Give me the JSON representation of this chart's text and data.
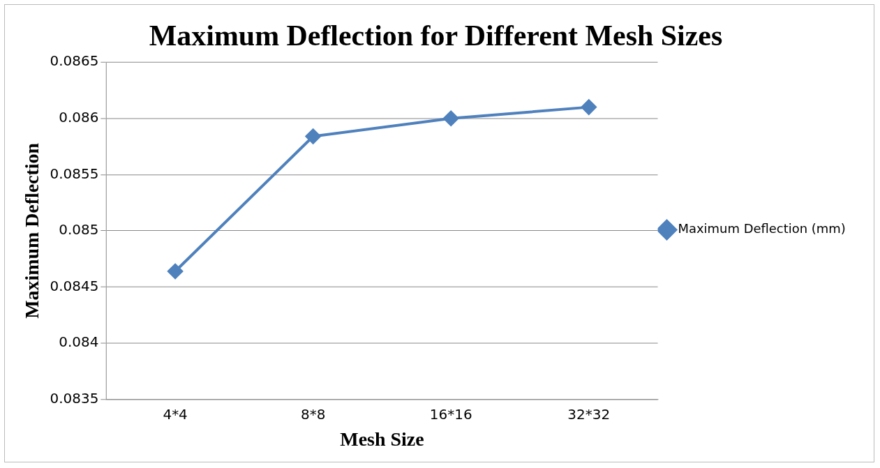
{
  "chart_data": {
    "type": "line",
    "title": "Maximum Deflection for Different Mesh Sizes",
    "xlabel": "Mesh Size",
    "ylabel": "Maximum Deflection",
    "categories": [
      "4*4",
      "8*8",
      "16*16",
      "32*32"
    ],
    "series": [
      {
        "name": "Maximum Deflection (mm)",
        "color": "#4f81bd",
        "values": [
          0.08464,
          0.08584,
          0.086,
          0.0861
        ]
      }
    ],
    "ylim": [
      0.0835,
      0.0865
    ],
    "yticks": [
      0.0835,
      0.084,
      0.0845,
      0.085,
      0.0855,
      0.086,
      0.0865
    ],
    "grid": "y",
    "legend": "right",
    "marker": "diamond",
    "line_style": "solid"
  }
}
